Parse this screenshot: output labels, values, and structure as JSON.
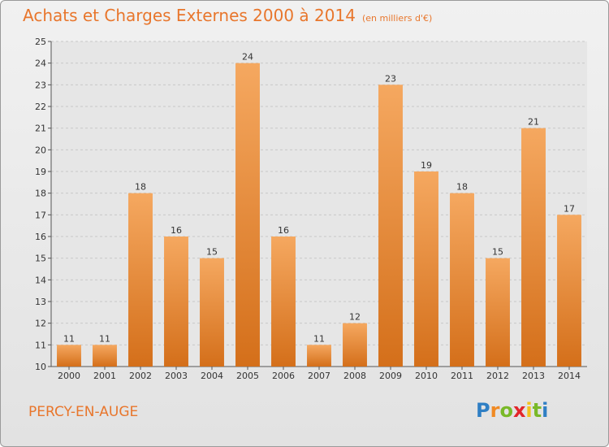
{
  "chart_data": {
    "type": "bar",
    "title": "Achats et Charges Externes 2000 à 2014",
    "subtitle": "(en milliers d'€)",
    "categories": [
      "2000",
      "2001",
      "2002",
      "2003",
      "2004",
      "2005",
      "2006",
      "2007",
      "2008",
      "2009",
      "2010",
      "2011",
      "2012",
      "2013",
      "2014"
    ],
    "values": [
      11,
      11,
      18,
      16,
      15,
      24,
      16,
      11,
      12,
      23,
      19,
      18,
      15,
      21,
      17
    ],
    "xlabel": "",
    "ylabel": "",
    "ylim": [
      10,
      25
    ],
    "yticks": [
      10,
      11,
      12,
      13,
      14,
      15,
      16,
      17,
      18,
      19,
      20,
      21,
      22,
      23,
      24,
      25
    ],
    "grid": true,
    "legend": "none",
    "colors": {
      "bar": "#f0913a",
      "bar_light": "#f5a860",
      "bar_dark": "#d46f1a",
      "accent": "#e8762c"
    }
  },
  "footer": {
    "place": "PERCY-EN-AUGE",
    "brand_letters": [
      {
        "char": "P",
        "color": "#2f7fc4"
      },
      {
        "char": "r",
        "color": "#f08a24"
      },
      {
        "char": "o",
        "color": "#79b928"
      },
      {
        "char": "x",
        "color": "#e2262a"
      },
      {
        "char": "i",
        "color": "#f3c21b"
      },
      {
        "char": "t",
        "color": "#79b928"
      },
      {
        "char": "i",
        "color": "#2f7fc4"
      }
    ]
  }
}
